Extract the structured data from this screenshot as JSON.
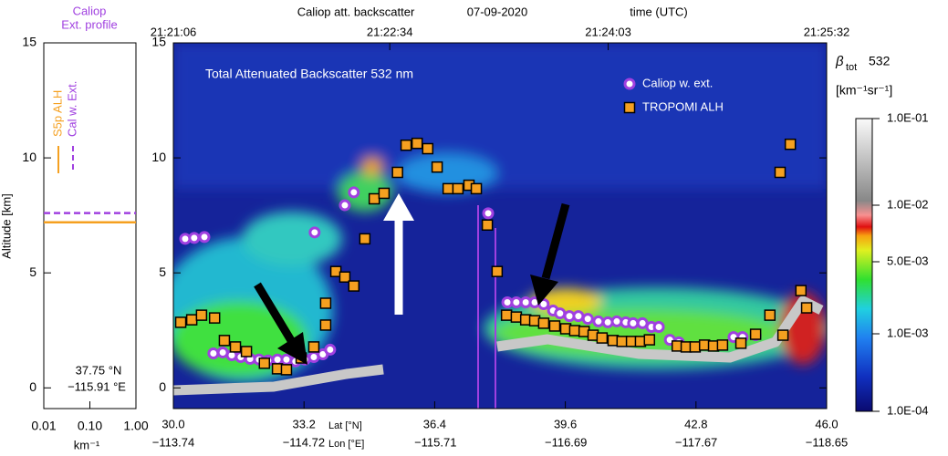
{
  "chart_data": [
    {
      "type": "scatter",
      "title": "Total Attenuated Backscatter 532 nm",
      "header": [
        "Caliop att. backscatter",
        "07-09-2020",
        "time (UTC)"
      ],
      "xlabel": "Lat [°N]",
      "x2label": "Lon [°E]",
      "xlim": [
        30.0,
        46.0
      ],
      "xticks": [
        {
          "value": 30.0,
          "label": "30.0"
        },
        33.2,
        36.4,
        39.6,
        42.8,
        {
          "value": 46.0,
          "label": "46.0"
        }
      ],
      "x2lim": [
        -113.74,
        -118.65
      ],
      "x2ticks": [
        {
          "value": -113.74,
          "label": "−113.74"
        },
        {
          "value": -114.72,
          "label": "−114.72"
        },
        {
          "value": -115.71,
          "label": "−115.71"
        },
        {
          "value": -116.69,
          "label": "−116.69"
        },
        {
          "value": -117.67,
          "label": "−117.67"
        },
        {
          "value": -118.65,
          "label": "−118.65"
        }
      ],
      "time_ticks": [
        {
          "value": 30.0,
          "label": "21:21:06"
        },
        {
          "value": 35.3,
          "label": "21:22:34"
        },
        {
          "value": 40.65,
          "label": "21:24:03"
        },
        {
          "value": 46.0,
          "label": "21:25:32"
        }
      ],
      "ylim": [
        -0.9,
        15
      ],
      "yticks": [
        0,
        5,
        10,
        15
      ],
      "legend": "upper right",
      "series": [
        {
          "name": "Caliop w. ext.",
          "color": "#a040e0",
          "marker": "circle",
          "x": [
            30.29,
            30.51,
            30.76,
            33.46,
            34.2,
            34.42,
            37.71,
            30.98,
            31.21,
            31.43,
            31.65,
            31.88,
            32.1,
            32.32,
            32.55,
            32.77,
            32.99,
            33.22,
            33.44,
            33.66,
            33.84,
            38.18,
            38.4,
            38.63,
            38.85,
            39.07,
            39.3,
            39.47,
            39.7,
            39.92,
            40.15,
            40.41,
            40.64,
            40.86,
            41.08,
            41.26,
            41.49,
            41.71,
            41.89,
            42.16,
            42.38,
            43.72,
            43.94,
            44.26
          ],
          "values": [
            6.48,
            6.52,
            6.56,
            6.76,
            7.94,
            8.5,
            7.59,
            1.5,
            1.54,
            1.42,
            1.34,
            1.26,
            1.23,
            1.19,
            1.23,
            1.23,
            1.15,
            1.23,
            1.34,
            1.46,
            1.66,
            3.72,
            3.72,
            3.72,
            3.72,
            3.64,
            3.36,
            3.24,
            3.12,
            3.12,
            3.0,
            2.89,
            2.85,
            2.89,
            2.85,
            2.81,
            2.81,
            2.65,
            2.65,
            2.09,
            1.98,
            2.21,
            2.21,
            2.29
          ]
        },
        {
          "name": "TROPOMI ALH",
          "color": "#f5a020",
          "marker": "square",
          "x": [
            30.18,
            30.45,
            30.69,
            31.01,
            31.25,
            31.52,
            31.79,
            32.23,
            32.55,
            32.77,
            33.13,
            33.44,
            33.73,
            33.73,
            33.98,
            34.2,
            34.42,
            34.69,
            34.92,
            35.16,
            35.49,
            35.7,
            35.97,
            36.23,
            36.46,
            36.73,
            36.97,
            37.24,
            37.42,
            37.69,
            37.93,
            38.16,
            38.4,
            38.63,
            38.85,
            39.07,
            39.34,
            39.61,
            39.83,
            40.06,
            40.28,
            40.5,
            40.77,
            40.99,
            41.22,
            41.44,
            41.66,
            42.34,
            42.56,
            42.78,
            43.01,
            43.23,
            43.45,
            43.9,
            44.26,
            44.61,
            44.93,
            45.11,
            44.86,
            45.37,
            45.51
          ],
          "values": [
            2.85,
            2.96,
            3.16,
            3.04,
            2.06,
            1.78,
            1.58,
            1.07,
            0.83,
            0.79,
            1.3,
            1.78,
            2.73,
            3.68,
            5.06,
            4.82,
            4.43,
            6.48,
            8.22,
            8.46,
            9.37,
            10.55,
            10.63,
            10.4,
            9.6,
            8.66,
            8.66,
            8.81,
            8.66,
            7.08,
            5.06,
            3.16,
            3.08,
            2.96,
            2.92,
            2.81,
            2.69,
            2.57,
            2.49,
            2.45,
            2.29,
            2.17,
            2.06,
            2.02,
            2.02,
            2.02,
            2.09,
            1.82,
            1.78,
            1.78,
            1.86,
            1.82,
            1.86,
            1.94,
            2.33,
            3.16,
            2.29,
            10.59,
            9.37,
            4.23,
            3.48
          ]
        }
      ],
      "colorbar": {
        "title": "β",
        "subscript": "tot",
        "title_suffix": "532",
        "unit": "[km⁻¹sr⁻¹]",
        "ticks": [
          {
            "value": 0.1,
            "label": "1.0E-01"
          },
          {
            "value": 0.01,
            "label": "1.0E-02"
          },
          {
            "value": 0.005,
            "label": "5.0E-03"
          },
          {
            "value": 0.001,
            "label": "1.0E-03"
          },
          {
            "value": 0.0001,
            "label": "1.0E-04"
          }
        ]
      }
    },
    {
      "type": "profile",
      "title": [
        "Caliop",
        "Ext. profile"
      ],
      "xlabel": "km⁻¹",
      "ylabel": "Altitude [km]",
      "log_x": true,
      "xlim": [
        0.01,
        1.0
      ],
      "xticks": [
        0.01,
        {
          "value": 0.1,
          "label": "0.10"
        },
        {
          "value": 1.0,
          "label": "1.00"
        }
      ],
      "ylim": [
        -0.9,
        15
      ],
      "yticks": [
        0,
        5,
        10,
        15
      ],
      "lines": [
        {
          "name": "S5p ALH",
          "color": "#f5a020",
          "style": "solid",
          "value": 7.2
        },
        {
          "name": "Cal w. Ext.",
          "color": "#a040e0",
          "style": "dashed",
          "value": 7.6
        }
      ],
      "annotation": [
        "37.75 °N",
        "−115.91 °E"
      ]
    }
  ]
}
